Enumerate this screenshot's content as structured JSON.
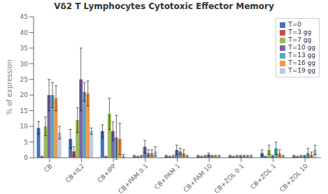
{
  "chart_data": {
    "type": "bar",
    "title": "Vδ2 T Lymphocytes Cytotoxic Effector Memory",
    "ylabel": "% of expression",
    "categories": [
      "CB",
      "CB+IL2",
      "CB+IPP",
      "CB+PAM 0.1",
      "CB+PAM 1",
      "CB+PAM 10",
      "CB+ZOL 0.1",
      "CB+ZOL 1",
      "CB+ZOL 10"
    ],
    "series": [
      {
        "name": "T=0",
        "color": "#4472C4",
        "values": [
          9.5,
          6.0,
          8.5,
          0.5,
          0.5,
          0.5,
          0.5,
          1.5,
          0.5
        ],
        "errors": [
          2.0,
          3.0,
          2.0,
          0.3,
          0.3,
          0.3,
          0.3,
          1.0,
          0.3
        ]
      },
      {
        "name": "T=3 gg",
        "color": "#C0504D",
        "values": [
          0.3,
          2.0,
          0.3,
          0.3,
          0.3,
          0.3,
          0.3,
          0.3,
          0.3
        ],
        "errors": [
          0.2,
          1.5,
          0.2,
          0.2,
          0.2,
          0.2,
          0.2,
          0.2,
          0.2
        ]
      },
      {
        "name": "T=7 gg",
        "color": "#9BBB59",
        "values": [
          10.0,
          12.0,
          14.0,
          0.5,
          0.5,
          0.5,
          0.5,
          2.5,
          0.5
        ],
        "errors": [
          3.0,
          4.0,
          5.0,
          0.3,
          0.3,
          0.3,
          0.3,
          1.5,
          0.3
        ]
      },
      {
        "name": "T=10 gg",
        "color": "#8064A2",
        "values": [
          20.0,
          25.0,
          8.5,
          3.5,
          2.5,
          1.0,
          0.5,
          0.5,
          0.5
        ],
        "errors": [
          5.0,
          10.0,
          3.0,
          2.0,
          1.5,
          0.5,
          0.3,
          0.3,
          0.3
        ]
      },
      {
        "name": "T=13 gg",
        "color": "#4BACC6",
        "values": [
          20.0,
          21.0,
          6.5,
          1.5,
          2.0,
          0.5,
          0.5,
          3.0,
          1.5
        ],
        "errors": [
          4.0,
          3.0,
          7.0,
          1.0,
          1.0,
          0.3,
          0.3,
          2.0,
          1.5
        ]
      },
      {
        "name": "T=16 gg",
        "color": "#F79646",
        "values": [
          19.0,
          20.5,
          6.0,
          1.5,
          1.5,
          0.5,
          0.5,
          1.5,
          1.0
        ],
        "errors": [
          4.0,
          4.0,
          5.0,
          1.0,
          1.0,
          0.3,
          0.3,
          1.0,
          0.8
        ]
      },
      {
        "name": "T=19 gg",
        "color": "#B8CCE4",
        "values": [
          8.0,
          8.5,
          0.5,
          2.0,
          0.5,
          0.5,
          0.5,
          0.5,
          2.5
        ],
        "errors": [
          2.0,
          1.0,
          0.5,
          1.5,
          0.3,
          0.3,
          0.3,
          0.3,
          1.5
        ]
      }
    ],
    "ylim": [
      0,
      45
    ],
    "yticks": [
      0,
      5,
      10,
      15,
      20,
      25,
      30,
      35,
      40,
      45
    ],
    "grid": false,
    "legend": "upper right"
  }
}
